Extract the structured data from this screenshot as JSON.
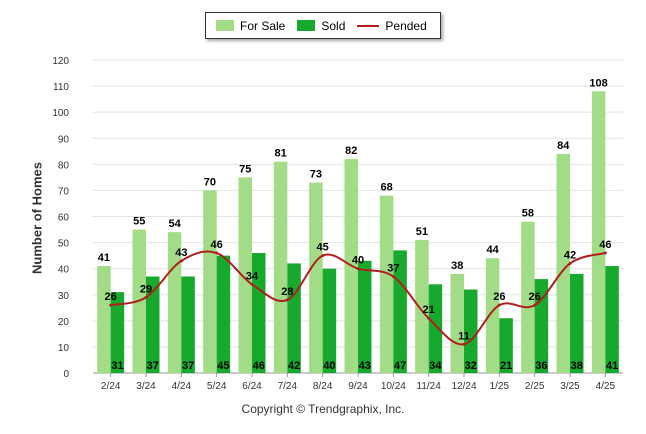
{
  "legend": {
    "for_sale": "For Sale",
    "sold": "Sold",
    "pended": "Pended"
  },
  "copyright": "Copyright © Trendgraphix, Inc.",
  "colors": {
    "for_sale": "#a3dc87",
    "sold": "#17a82e",
    "pended": "#b11e1e"
  },
  "chart_data": {
    "type": "bar",
    "title": "",
    "xlabel": "",
    "ylabel": "Number of Homes",
    "ylim": [
      0,
      120
    ],
    "yticks": [
      0,
      10,
      20,
      30,
      40,
      50,
      60,
      70,
      80,
      90,
      100,
      110,
      120
    ],
    "grid": true,
    "legend_position": "top-center",
    "categories": [
      "2/24",
      "3/24",
      "4/24",
      "5/24",
      "6/24",
      "7/24",
      "8/24",
      "9/24",
      "10/24",
      "11/24",
      "12/24",
      "1/25",
      "2/25",
      "3/25",
      "4/25"
    ],
    "series": [
      {
        "name": "For Sale",
        "type": "bar",
        "values": [
          41,
          55,
          54,
          70,
          75,
          81,
          73,
          82,
          68,
          51,
          38,
          44,
          58,
          84,
          108
        ]
      },
      {
        "name": "Sold",
        "type": "bar",
        "values": [
          31,
          37,
          37,
          45,
          46,
          42,
          40,
          43,
          47,
          34,
          32,
          21,
          36,
          38,
          41
        ]
      },
      {
        "name": "Pended",
        "type": "line",
        "values": [
          26,
          29,
          43,
          46,
          34,
          28,
          45,
          40,
          37,
          21,
          11,
          26,
          26,
          42,
          46
        ]
      }
    ]
  }
}
